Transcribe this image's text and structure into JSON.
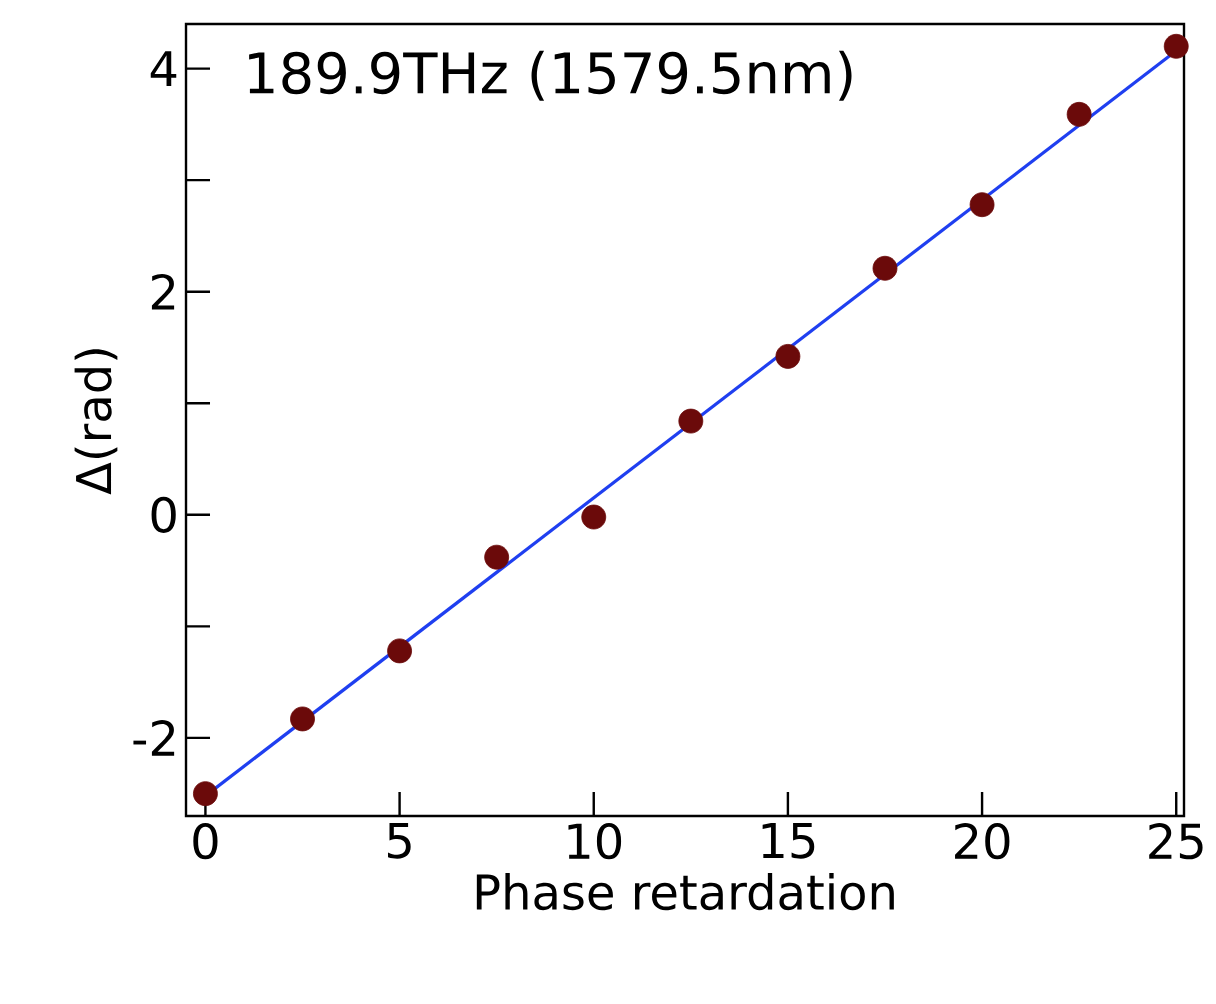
{
  "chart_data": {
    "type": "scatter",
    "xlabel": "Phase retardation",
    "ylabel": "Δ(rad)",
    "annotations": [
      "189.9THz (1579.5nm)"
    ],
    "x": [
      0,
      2.5,
      5,
      7.5,
      10,
      12.5,
      15,
      17.5,
      20,
      22.5,
      25
    ],
    "series": [
      {
        "color": "#6b0a0a",
        "marker": "circle",
        "values": [
          -2.5,
          -1.83,
          -1.22,
          -0.38,
          -0.02,
          0.84,
          1.42,
          2.21,
          2.78,
          3.59,
          4.2
        ]
      },
      {
        "type": "line",
        "color": "#1f3ff0",
        "marker": "none",
        "x": [
          0,
          25
        ],
        "values": [
          -2.52,
          4.16
        ]
      }
    ],
    "xlim": [
      -0.5,
      25.2
    ],
    "ylim": [
      -2.7,
      4.4
    ],
    "xticks": [
      0,
      5,
      10,
      15,
      20,
      25
    ],
    "yticks": [
      -2,
      {
        "value": -1,
        "label": null
      },
      0,
      {
        "value": 1,
        "label": null
      },
      2,
      {
        "value": 3,
        "label": null
      },
      4
    ],
    "grid": false
  }
}
